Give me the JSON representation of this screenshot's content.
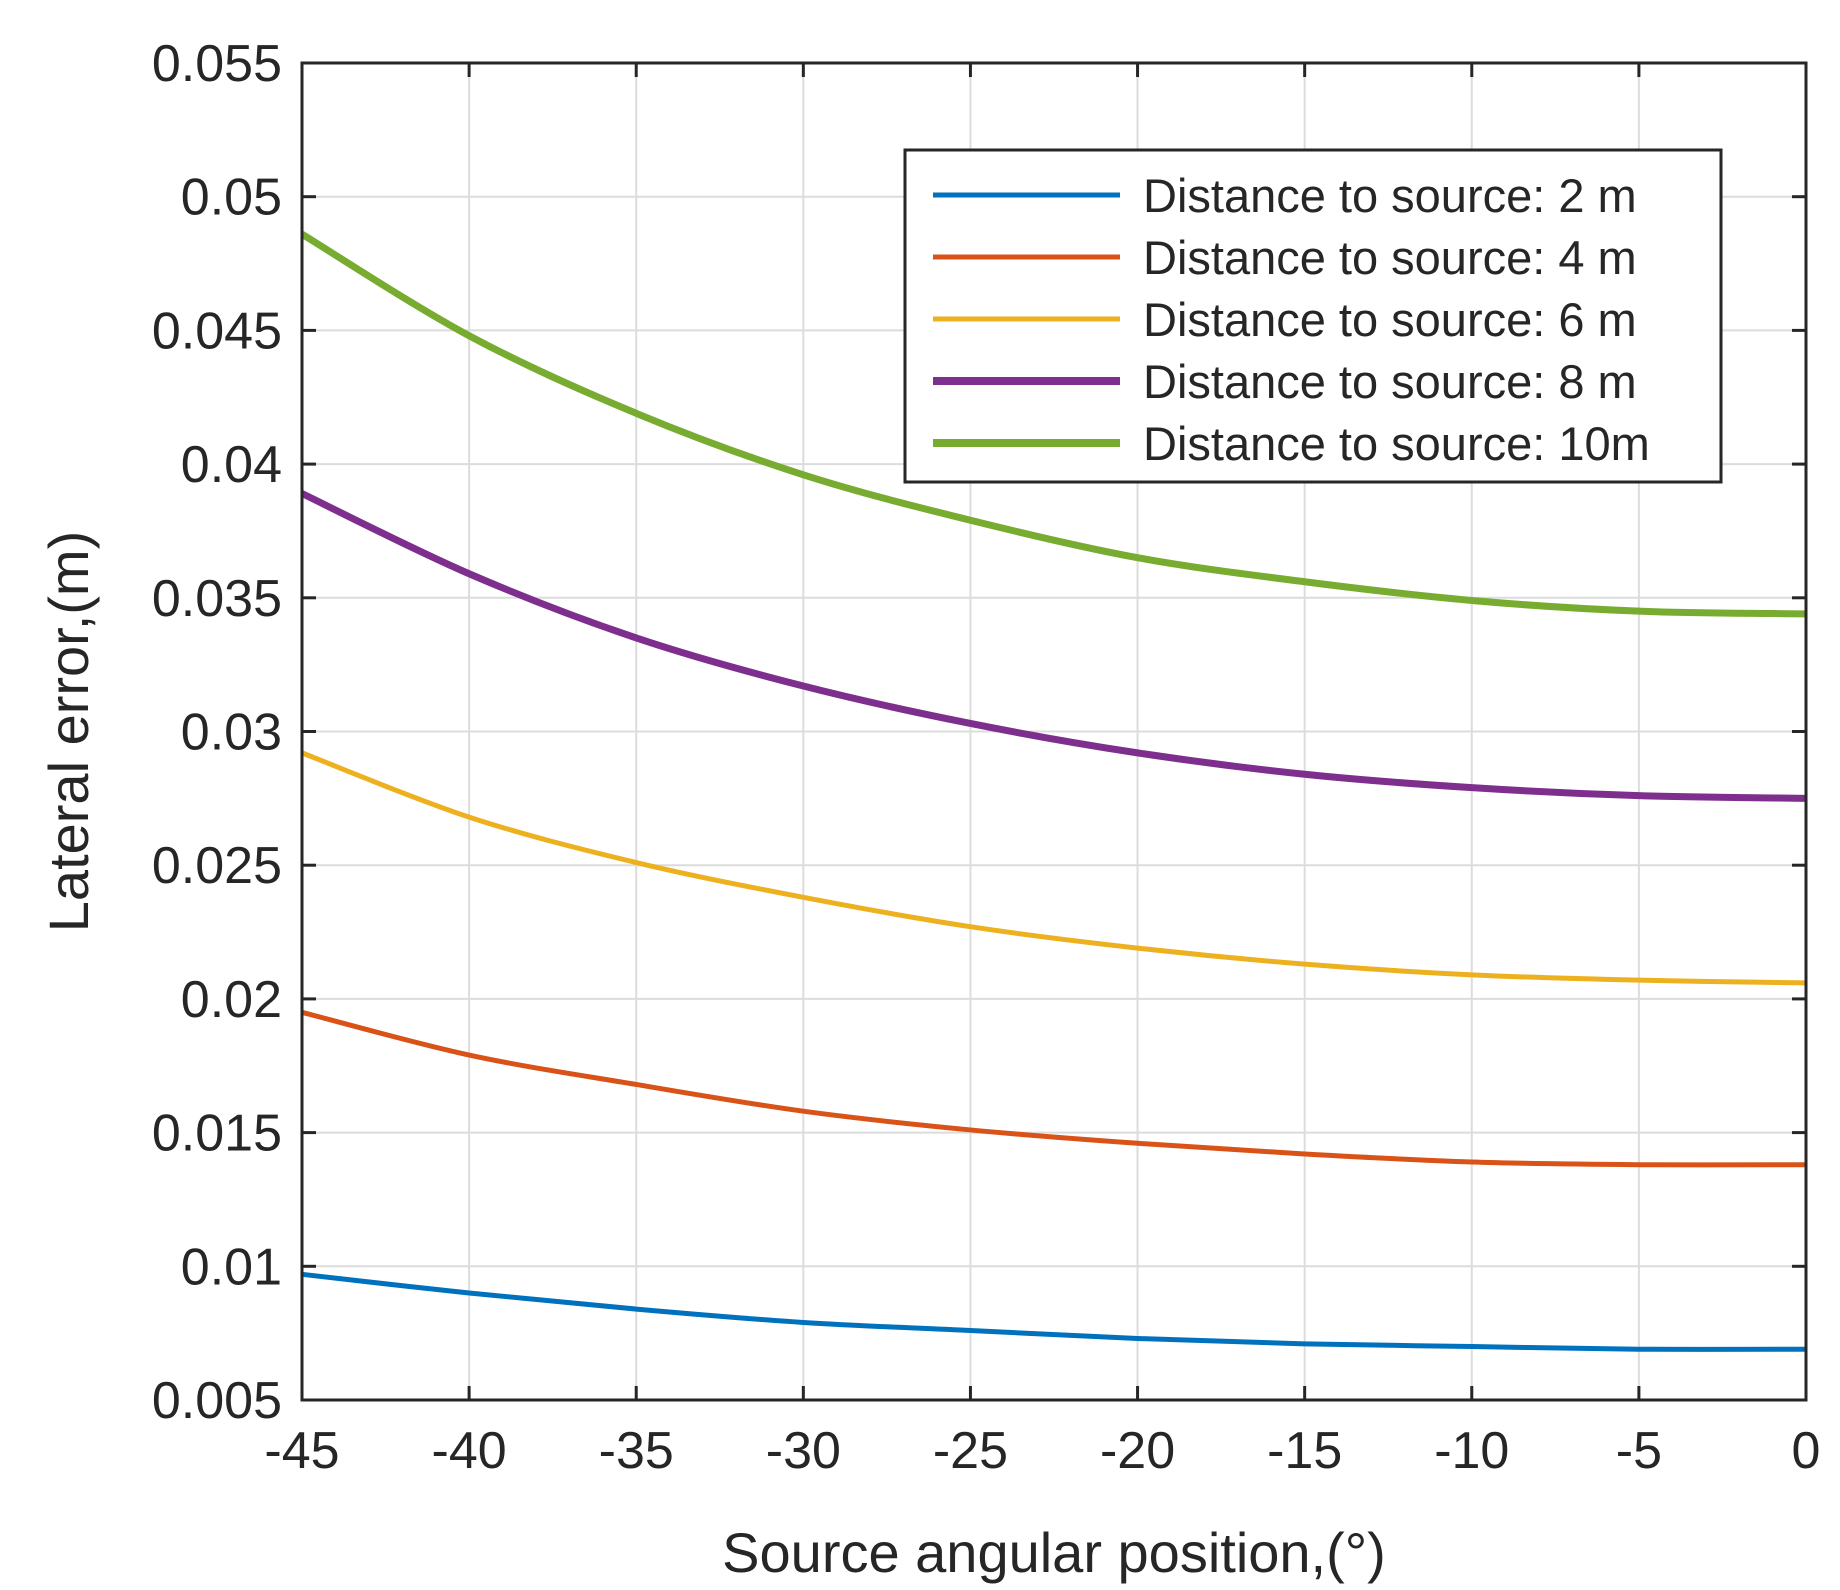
{
  "chart_data": {
    "type": "line",
    "title": "",
    "xlabel": "Source angular position,(°)",
    "ylabel": "Lateral error,(m)",
    "xlim": [
      -45,
      0
    ],
    "ylim": [
      0.005,
      0.055
    ],
    "xticks": [
      -45,
      -40,
      -35,
      -30,
      -25,
      -20,
      -15,
      -10,
      -5,
      0
    ],
    "xtick_labels": [
      "-45",
      "-40",
      "-35",
      "-30",
      "-25",
      "-20",
      "-15",
      "-10",
      "-5",
      "0"
    ],
    "yticks": [
      0.005,
      0.01,
      0.015,
      0.02,
      0.025,
      0.03,
      0.035,
      0.04,
      0.045,
      0.05,
      0.055
    ],
    "ytick_labels": [
      "0.005",
      "0.01",
      "0.015",
      "0.02",
      "0.025",
      "0.03",
      "0.035",
      "0.04",
      "0.045",
      "0.05",
      "0.055"
    ],
    "grid": true,
    "legend_position": "top-right",
    "x": [
      -45,
      -40,
      -35,
      -30,
      -25,
      -20,
      -15,
      -10,
      -5,
      0
    ],
    "series": [
      {
        "name": "Distance to source: 2 m",
        "color": "#0072BD",
        "line_weight": "normal",
        "values": [
          0.0097,
          0.009,
          0.0084,
          0.0079,
          0.0076,
          0.0073,
          0.0071,
          0.007,
          0.0069,
          0.0069
        ]
      },
      {
        "name": "Distance to source: 4 m",
        "color": "#D95319",
        "line_weight": "normal",
        "values": [
          0.0195,
          0.0179,
          0.0168,
          0.0158,
          0.0151,
          0.0146,
          0.0142,
          0.0139,
          0.0138,
          0.0138
        ]
      },
      {
        "name": "Distance to source: 6 m",
        "color": "#EDB120",
        "line_weight": "normal",
        "values": [
          0.0292,
          0.0268,
          0.0251,
          0.0238,
          0.0227,
          0.0219,
          0.0213,
          0.0209,
          0.0207,
          0.0206
        ]
      },
      {
        "name": "Distance to source: 8 m",
        "color": "#7E2F8E",
        "line_weight": "bold",
        "values": [
          0.0389,
          0.0359,
          0.0335,
          0.0317,
          0.0303,
          0.0292,
          0.0284,
          0.0279,
          0.0276,
          0.0275
        ]
      },
      {
        "name": "Distance to source: 10m",
        "color": "#77AC30",
        "line_weight": "bold",
        "values": [
          0.0486,
          0.0448,
          0.0419,
          0.0396,
          0.0379,
          0.0365,
          0.0356,
          0.0349,
          0.0345,
          0.0344
        ]
      }
    ]
  }
}
